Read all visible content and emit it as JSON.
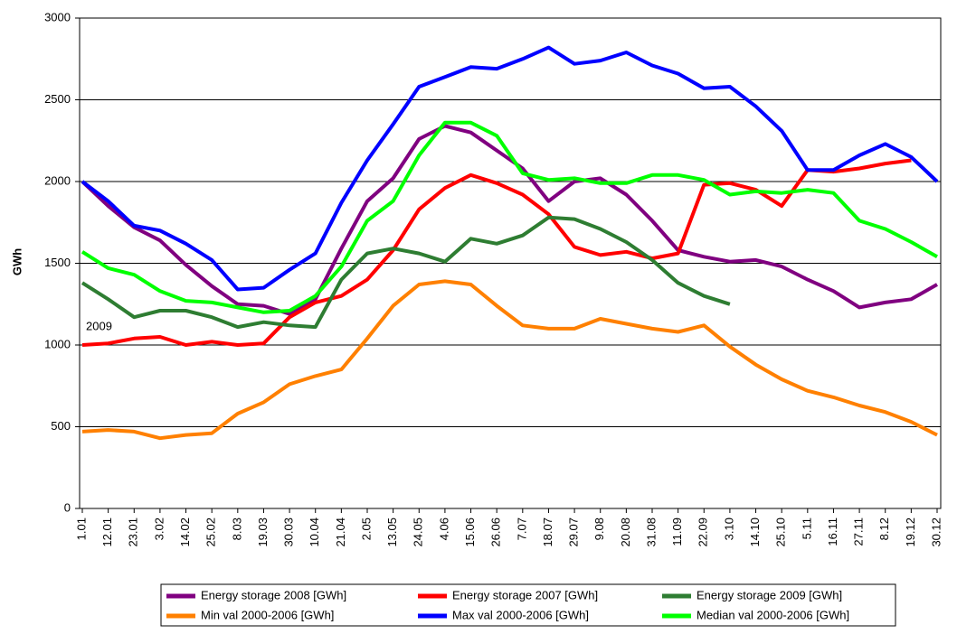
{
  "chart_data": {
    "type": "line",
    "y_label": "GWh",
    "annotations": [
      "2009"
    ],
    "categories": [
      "1.01",
      "12.01",
      "23.01",
      "3.02",
      "14.02",
      "25.02",
      "8.03",
      "19.03",
      "30.03",
      "10.04",
      "21.04",
      "2.05",
      "13.05",
      "24.05",
      "4.06",
      "15.06",
      "26.06",
      "7.07",
      "18.07",
      "29.07",
      "9.08",
      "20.08",
      "31.08",
      "11.09",
      "22.09",
      "3.10",
      "14.10",
      "25.10",
      "5.11",
      "16.11",
      "27.11",
      "8.12",
      "19.12",
      "30.12"
    ],
    "series": [
      {
        "name": "Energy storage 2008 [GWh]",
        "color": "#800080",
        "values": [
          2000,
          1850,
          1720,
          1640,
          1490,
          1360,
          1250,
          1240,
          1190,
          1280,
          1590,
          1880,
          2020,
          2260,
          2340,
          2300,
          2190,
          2080,
          1880,
          2000,
          2020,
          1920,
          1760,
          1580,
          1540,
          1510,
          1520,
          1480,
          1400,
          1330,
          1230,
          1260,
          1280,
          1370
        ]
      },
      {
        "name": "Energy storage 2007 [GWh]",
        "color": "#ff0000",
        "values": [
          1000,
          1010,
          1040,
          1050,
          1000,
          1020,
          1000,
          1010,
          1170,
          1260,
          1300,
          1400,
          1580,
          1830,
          1960,
          2040,
          1990,
          1920,
          1800,
          1600,
          1550,
          1570,
          1530,
          1560,
          1980,
          1990,
          1950,
          1850,
          2070,
          2060,
          2080,
          2110,
          2130,
          null
        ]
      },
      {
        "name": "Energy storage 2009 [GWh]",
        "color": "#2e7d32",
        "values": [
          1380,
          1280,
          1170,
          1210,
          1210,
          1170,
          1110,
          1140,
          1120,
          1110,
          1400,
          1560,
          1590,
          1560,
          1510,
          1650,
          1620,
          1670,
          1780,
          1770,
          1710,
          1630,
          1520,
          1380,
          1300,
          1250,
          null,
          null,
          null,
          null,
          null,
          null,
          null,
          null
        ]
      },
      {
        "name": "Min val 2000-2006 [GWh]",
        "color": "#ff8000",
        "values": [
          470,
          480,
          470,
          430,
          450,
          460,
          580,
          650,
          760,
          810,
          850,
          1040,
          1240,
          1370,
          1390,
          1370,
          1240,
          1120,
          1100,
          1100,
          1160,
          1130,
          1100,
          1080,
          1120,
          990,
          880,
          790,
          720,
          680,
          630,
          590,
          530,
          450
        ]
      },
      {
        "name": "Max val 2000-2006 [GWh]",
        "color": "#0000ff",
        "values": [
          2000,
          1880,
          1730,
          1700,
          1620,
          1520,
          1340,
          1350,
          1460,
          1560,
          1870,
          2130,
          2350,
          2580,
          2640,
          2700,
          2690,
          2750,
          2820,
          2720,
          2740,
          2790,
          2710,
          2660,
          2570,
          2580,
          2460,
          2310,
          2070,
          2070,
          2160,
          2230,
          2150,
          2000
        ]
      },
      {
        "name": "Median val 2000-2006 [GWh]",
        "color": "#00ff00",
        "values": [
          1570,
          1470,
          1430,
          1330,
          1270,
          1260,
          1230,
          1200,
          1210,
          1300,
          1480,
          1760,
          1880,
          2160,
          2360,
          2360,
          2280,
          2050,
          2010,
          2020,
          1990,
          1990,
          2040,
          2040,
          2010,
          1920,
          1940,
          1930,
          1950,
          1930,
          1760,
          1710,
          1630,
          1540
        ]
      }
    ],
    "ylim": [
      0,
      3000
    ],
    "yticks": [
      0,
      500,
      1000,
      1500,
      2000,
      2500,
      3000
    ],
    "grid": true
  }
}
